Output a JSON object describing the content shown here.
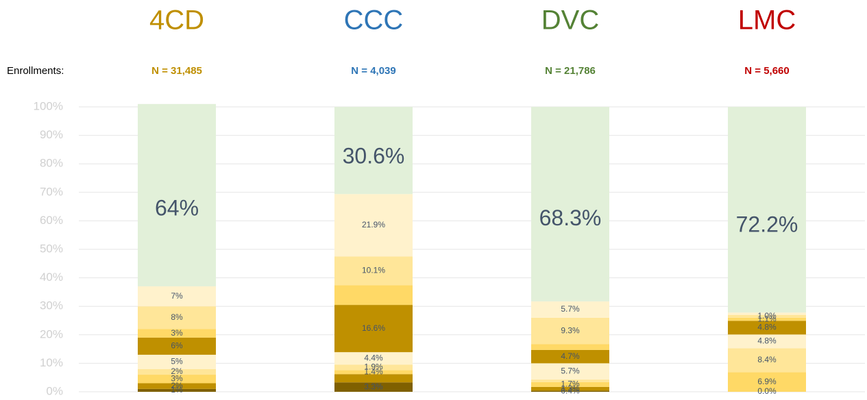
{
  "chart_data": {
    "type": "stacked_bar",
    "categories": [
      "4CD",
      "CCC",
      "DVC",
      "LMC"
    ],
    "category_colors": [
      "#bf8f00",
      "#2e75b6",
      "#548235",
      "#c00000"
    ],
    "row_label": "Enrollments:",
    "enrollment_labels": [
      "N = 31,485",
      "N = 4,039",
      "N = 21,786",
      "N = 5,660"
    ],
    "ylim": [
      0,
      100
    ],
    "yticks": [
      {
        "value": 0,
        "label": "0%"
      },
      {
        "value": 10,
        "label": "10%"
      },
      {
        "value": 20,
        "label": "20%"
      },
      {
        "value": 30,
        "label": "30%"
      },
      {
        "value": 40,
        "label": "40%"
      },
      {
        "value": 50,
        "label": "50%"
      },
      {
        "value": 60,
        "label": "60%"
      },
      {
        "value": 70,
        "label": "70%"
      },
      {
        "value": 80,
        "label": "80%"
      },
      {
        "value": 90,
        "label": "90%"
      },
      {
        "value": 100,
        "label": "100%"
      }
    ],
    "grid": true,
    "series": [
      {
        "color": "#7f6000",
        "values": [
          1,
          3.3,
          0.4,
          0.0
        ],
        "value_labels": [
          "1%",
          "3.3%",
          "0.4%",
          "0.0%"
        ]
      },
      {
        "color": "#bf9000",
        "values": [
          2,
          2.9,
          1.3,
          0
        ],
        "value_labels": [
          "2%",
          null,
          "1.3%",
          null
        ]
      },
      {
        "color": "#ffd966",
        "values": [
          3,
          1.4,
          1.7,
          6.9
        ],
        "value_labels": [
          "3%",
          "1.4%",
          "1.7%",
          "6.9%"
        ]
      },
      {
        "color": "#ffe699",
        "values": [
          2,
          1.9,
          0.9,
          8.4
        ],
        "value_labels": [
          "2%",
          "1.9%",
          null,
          "8.4%"
        ]
      },
      {
        "color": "#fff2cc",
        "values": [
          5,
          4.4,
          5.7,
          4.8
        ],
        "value_labels": [
          "5%",
          "4.4%",
          "5.7%",
          "4.8%"
        ]
      },
      {
        "color": "#bf9000",
        "values": [
          6,
          16.6,
          4.7,
          4.8
        ],
        "value_labels": [
          "6%",
          "16.6%",
          "4.7%",
          "4.8%"
        ]
      },
      {
        "color": "#ffd966",
        "values": [
          3,
          6.9,
          2.0,
          1.1
        ],
        "value_labels": [
          "3%",
          null,
          null,
          "1.1%"
        ]
      },
      {
        "color": "#ffe699",
        "values": [
          8,
          10.1,
          9.3,
          1.0
        ],
        "value_labels": [
          "8%",
          "10.1%",
          "9.3%",
          "1.0%"
        ]
      },
      {
        "color": "#fff2cc",
        "values": [
          7,
          21.9,
          5.7,
          0.8
        ],
        "value_labels": [
          "7%",
          "21.9%",
          "5.7%",
          null
        ]
      },
      {
        "color": "#e2f0d9",
        "values": [
          64,
          30.6,
          68.3,
          72.2
        ],
        "value_labels": [
          "64%",
          "30.6%",
          "68.3%",
          "72.2%"
        ]
      }
    ]
  }
}
